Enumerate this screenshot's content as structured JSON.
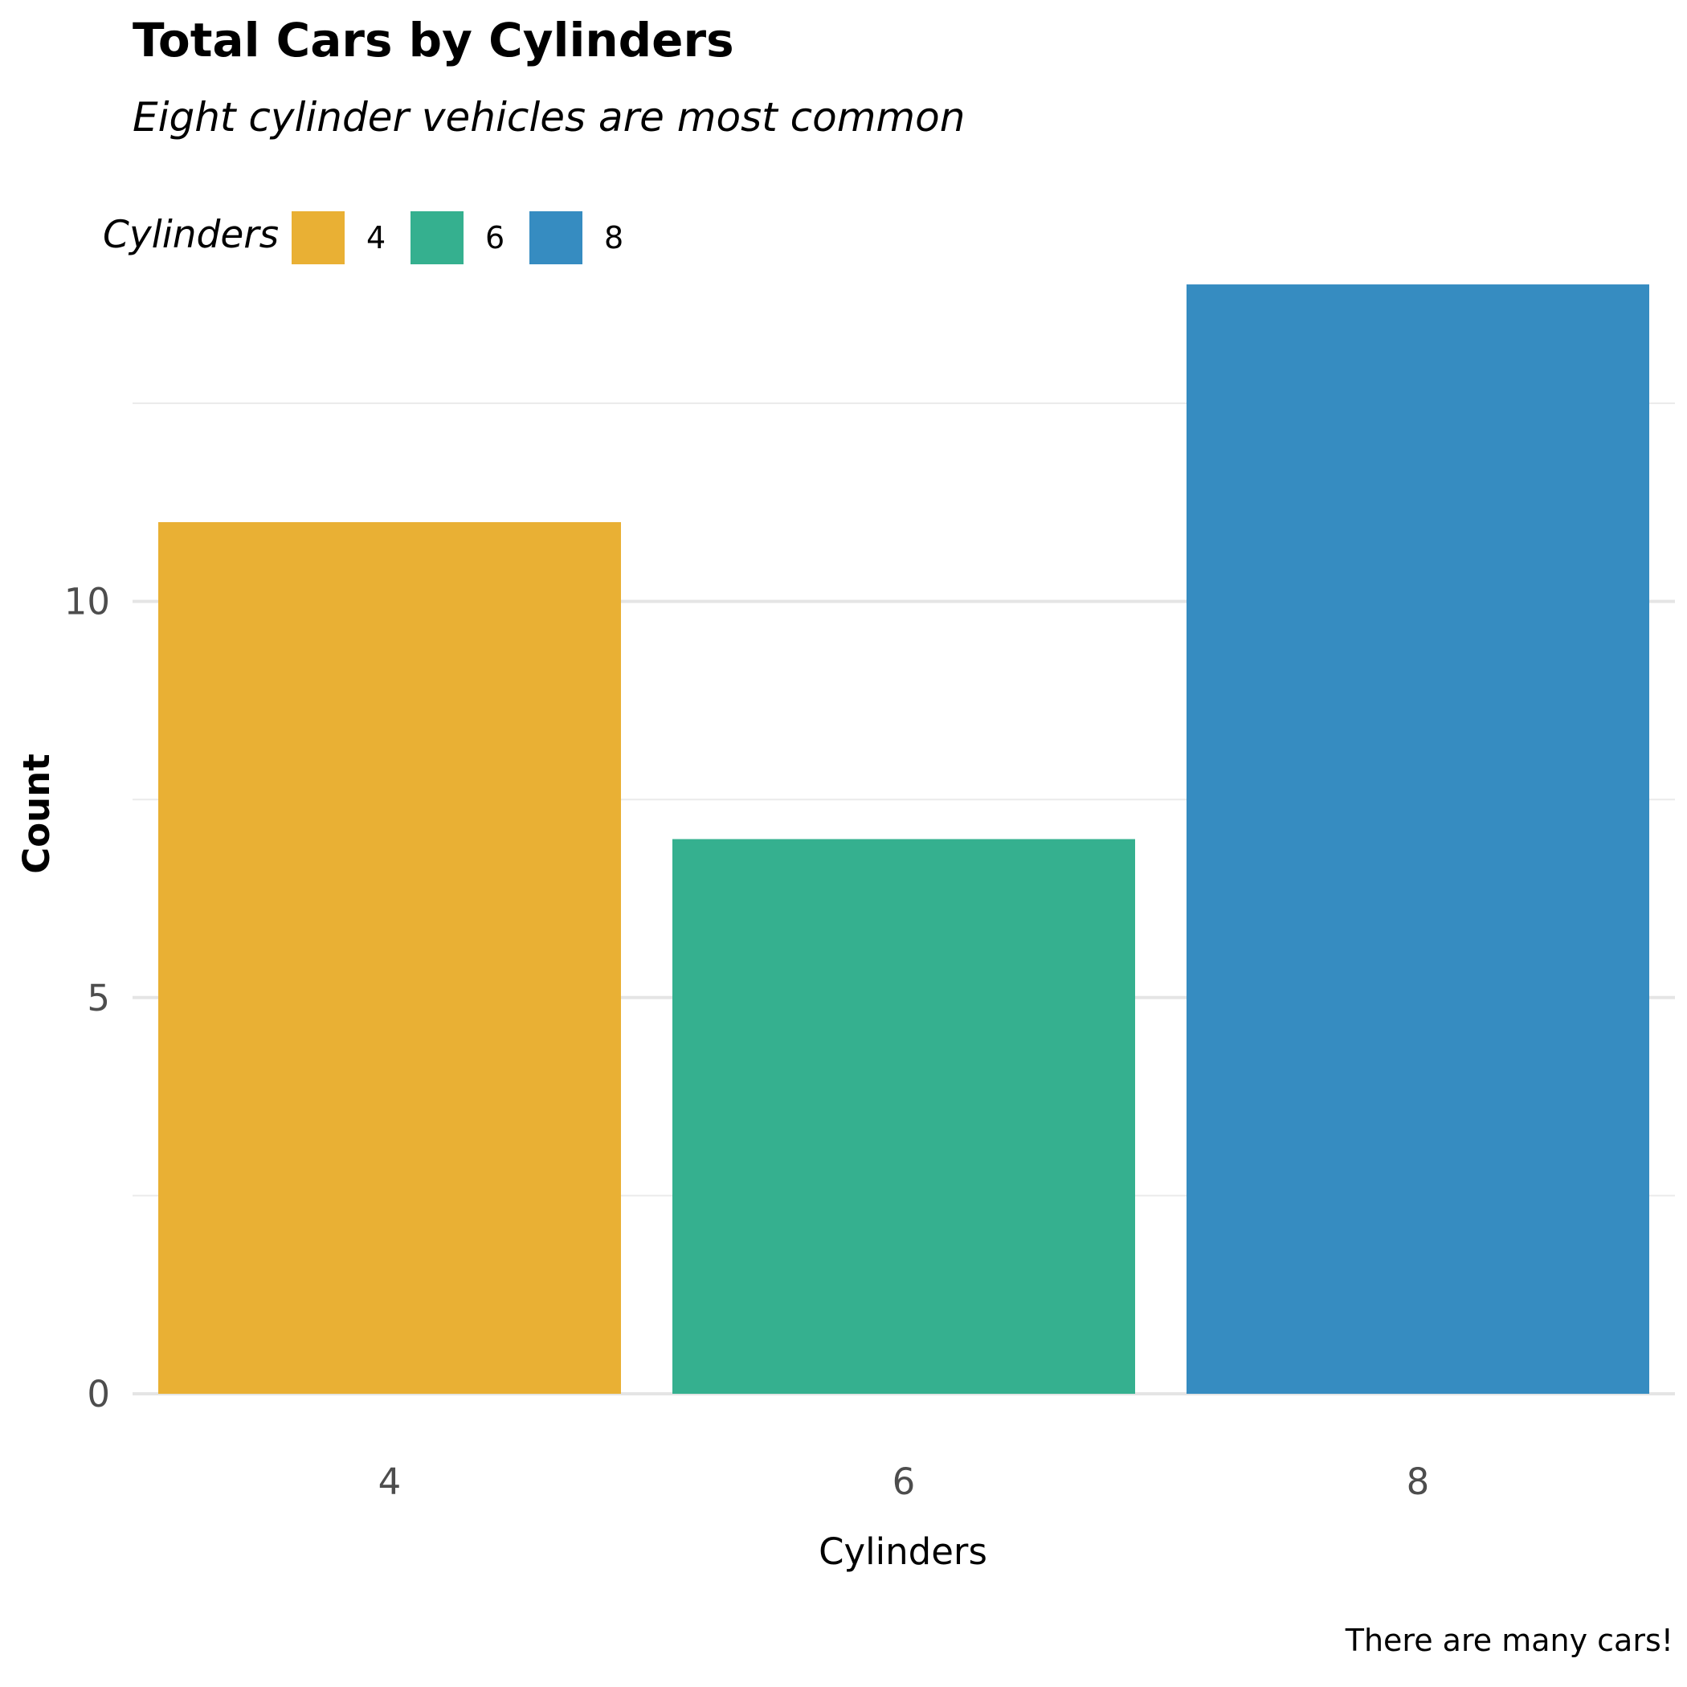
{
  "chart_data": {
    "type": "bar",
    "title": "Total Cars by Cylinders",
    "subtitle": "Eight cylinder vehicles are most common",
    "categories": [
      "4",
      "6",
      "8"
    ],
    "values": [
      11,
      7,
      14
    ],
    "colors": [
      "#e9b034",
      "#35b08f",
      "#368cc1"
    ],
    "xlabel": "Cylinders",
    "ylabel": "Count",
    "ylim": [
      0,
      14.7
    ],
    "yticks": [
      0,
      5,
      10
    ],
    "yminor": [
      2.5,
      7.5,
      12.5
    ],
    "legend": {
      "title": "Cylinders",
      "placement": "top-left",
      "entries": [
        "4",
        "6",
        "8"
      ]
    },
    "caption": "There are many cars!",
    "grid": true
  }
}
